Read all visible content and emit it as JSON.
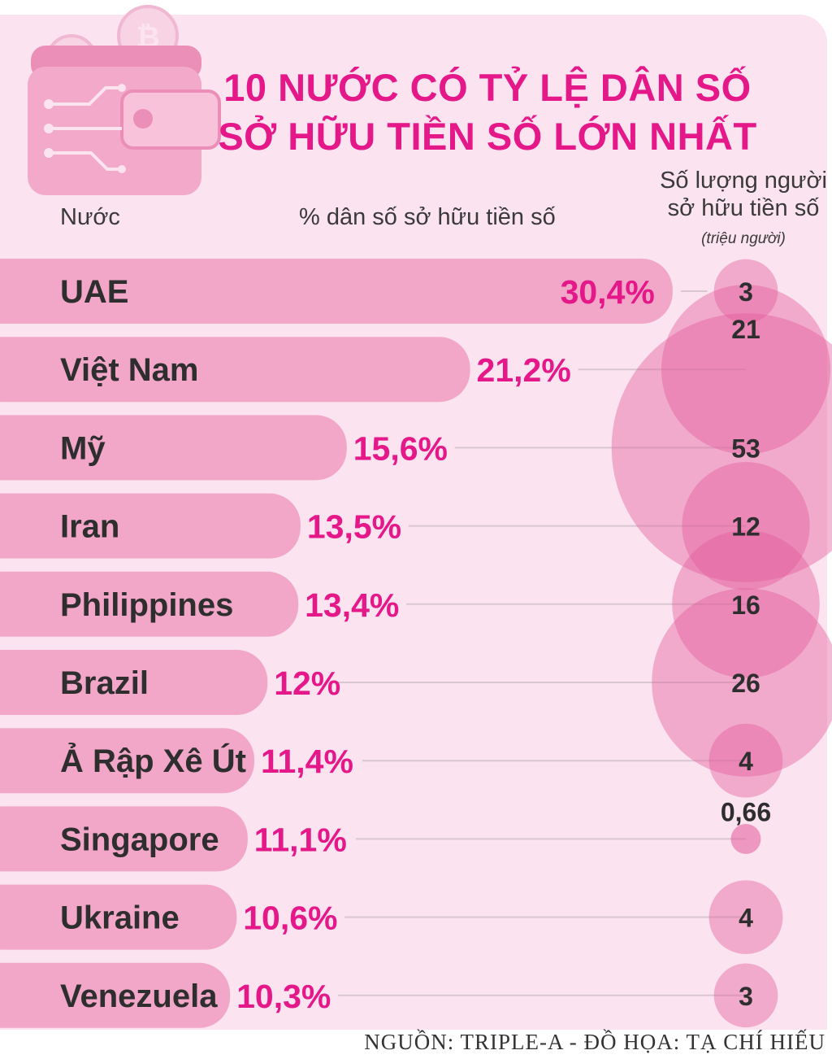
{
  "title_line1": "10 NƯỚC CÓ TỶ LỆ DÂN SỐ",
  "title_line2": "SỞ HỮU TIỀN SỐ LỚN NHẤT",
  "header_country": "Nước",
  "header_percent": "% dân số sở hữu tiền số",
  "header_count_line1": "Số lượng người",
  "header_count_line2": "sở hữu tiền số",
  "header_count_unit": "(triệu người)",
  "source": "NGUỒN: TRIPLE-A - ĐỒ HỌA: TẠ CHÍ HIẾU",
  "colors": {
    "accent": "#e5188a",
    "bar": "#f2a6c8",
    "background": "#fbe3ef",
    "bubble": "#e25a9b"
  },
  "chart_data": {
    "type": "bar",
    "orientation": "horizontal",
    "categories": [
      "UAE",
      "Việt Nam",
      "Mỹ",
      "Iran",
      "Philippines",
      "Brazil",
      "Ả Rập Xê Út",
      "Singapore",
      "Ukraine",
      "Venezuela"
    ],
    "series": [
      {
        "name": "% dân số sở hữu tiền số",
        "values": [
          30.4,
          21.2,
          15.6,
          13.5,
          13.4,
          12,
          11.4,
          11.1,
          10.6,
          10.3
        ],
        "labels": [
          "30,4%",
          "21,2%",
          "15,6%",
          "13,5%",
          "13,4%",
          "12%",
          "11,4%",
          "11,1%",
          "10,6%",
          "10,3%"
        ]
      },
      {
        "name": "Số lượng người sở hữu tiền số (triệu người)",
        "chart": "bubble",
        "values": [
          3,
          21,
          53,
          12,
          16,
          26,
          4,
          0.66,
          4,
          3
        ],
        "labels": [
          "3",
          "21",
          "53",
          "12",
          "16",
          "26",
          "4",
          "0,66",
          "4",
          "3"
        ]
      }
    ]
  }
}
